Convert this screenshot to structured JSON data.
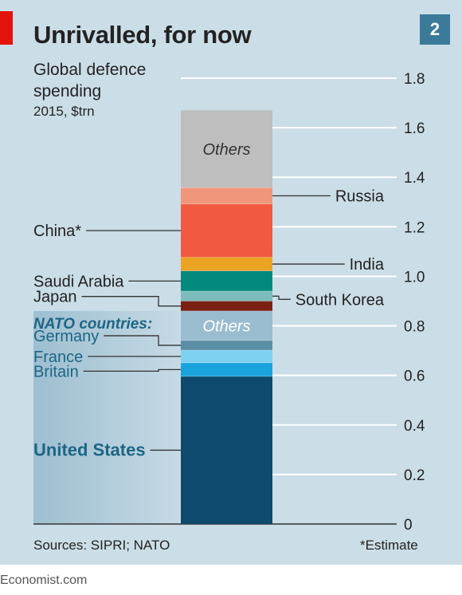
{
  "header": {
    "title": "Unrivalled, for now",
    "badge": "2",
    "subtitle": "Global defence spending",
    "units": "2015, $trn"
  },
  "footer": {
    "sources": "Sources: SIPRI; NATO",
    "note": "*Estimate",
    "brand": "Economist.com"
  },
  "colors": {
    "background": "#cbdde7",
    "us": "#0d4a6b",
    "britain": "#1aa2dc",
    "france": "#7fd1f2",
    "germany": "#5a8fa6",
    "nato_others": "#99bccf",
    "japan": "#7a2113",
    "south_korea": "#7cbcbd",
    "saudi_arabia": "#04897e",
    "india": "#eca324",
    "china": "#f15940",
    "russia": "#f0967a",
    "others": "#bebebe",
    "nato_label": "#1e6584",
    "accent_red": "#e3120b"
  },
  "chart_data": {
    "type": "bar",
    "title": "Unrivalled, for now",
    "subtitle": "Global defence spending",
    "units": "2015, $trn",
    "stacked": true,
    "ylim": [
      0,
      1.8
    ],
    "yticks": [
      "0",
      "0.2",
      "0.4",
      "0.6",
      "0.8",
      "1.0",
      "1.2",
      "1.4",
      "1.6",
      "1.8"
    ],
    "group_label": "NATO countries:",
    "segments": [
      {
        "name": "United States",
        "value": 0.596,
        "color": "#0d4a6b",
        "label_side": "left",
        "bold": true,
        "group": "nato"
      },
      {
        "name": "Britain",
        "value": 0.055,
        "color": "#1aa2dc",
        "label_side": "left",
        "group": "nato"
      },
      {
        "name": "France",
        "value": 0.051,
        "color": "#7fd1f2",
        "label_side": "left",
        "group": "nato"
      },
      {
        "name": "Germany",
        "value": 0.039,
        "color": "#5a8fa6",
        "label_side": "left",
        "group": "nato"
      },
      {
        "name": "Others",
        "value": 0.119,
        "color": "#99bccf",
        "label_side": "inside",
        "group": "nato"
      },
      {
        "name": "Japan",
        "value": 0.04,
        "color": "#7a2113",
        "label_side": "left"
      },
      {
        "name": "South Korea",
        "value": 0.04,
        "color": "#7cbcbd",
        "label_side": "right"
      },
      {
        "name": "Saudi Arabia",
        "value": 0.082,
        "color": "#04897e",
        "label_side": "left"
      },
      {
        "name": "India",
        "value": 0.055,
        "color": "#eca324",
        "label_side": "right"
      },
      {
        "name": "China*",
        "value": 0.215,
        "color": "#f15940",
        "label_side": "left"
      },
      {
        "name": "Russia",
        "value": 0.066,
        "color": "#f0967a",
        "label_side": "right"
      },
      {
        "name": "Others",
        "value": 0.312,
        "color": "#bebebe",
        "label_side": "inside"
      }
    ]
  }
}
